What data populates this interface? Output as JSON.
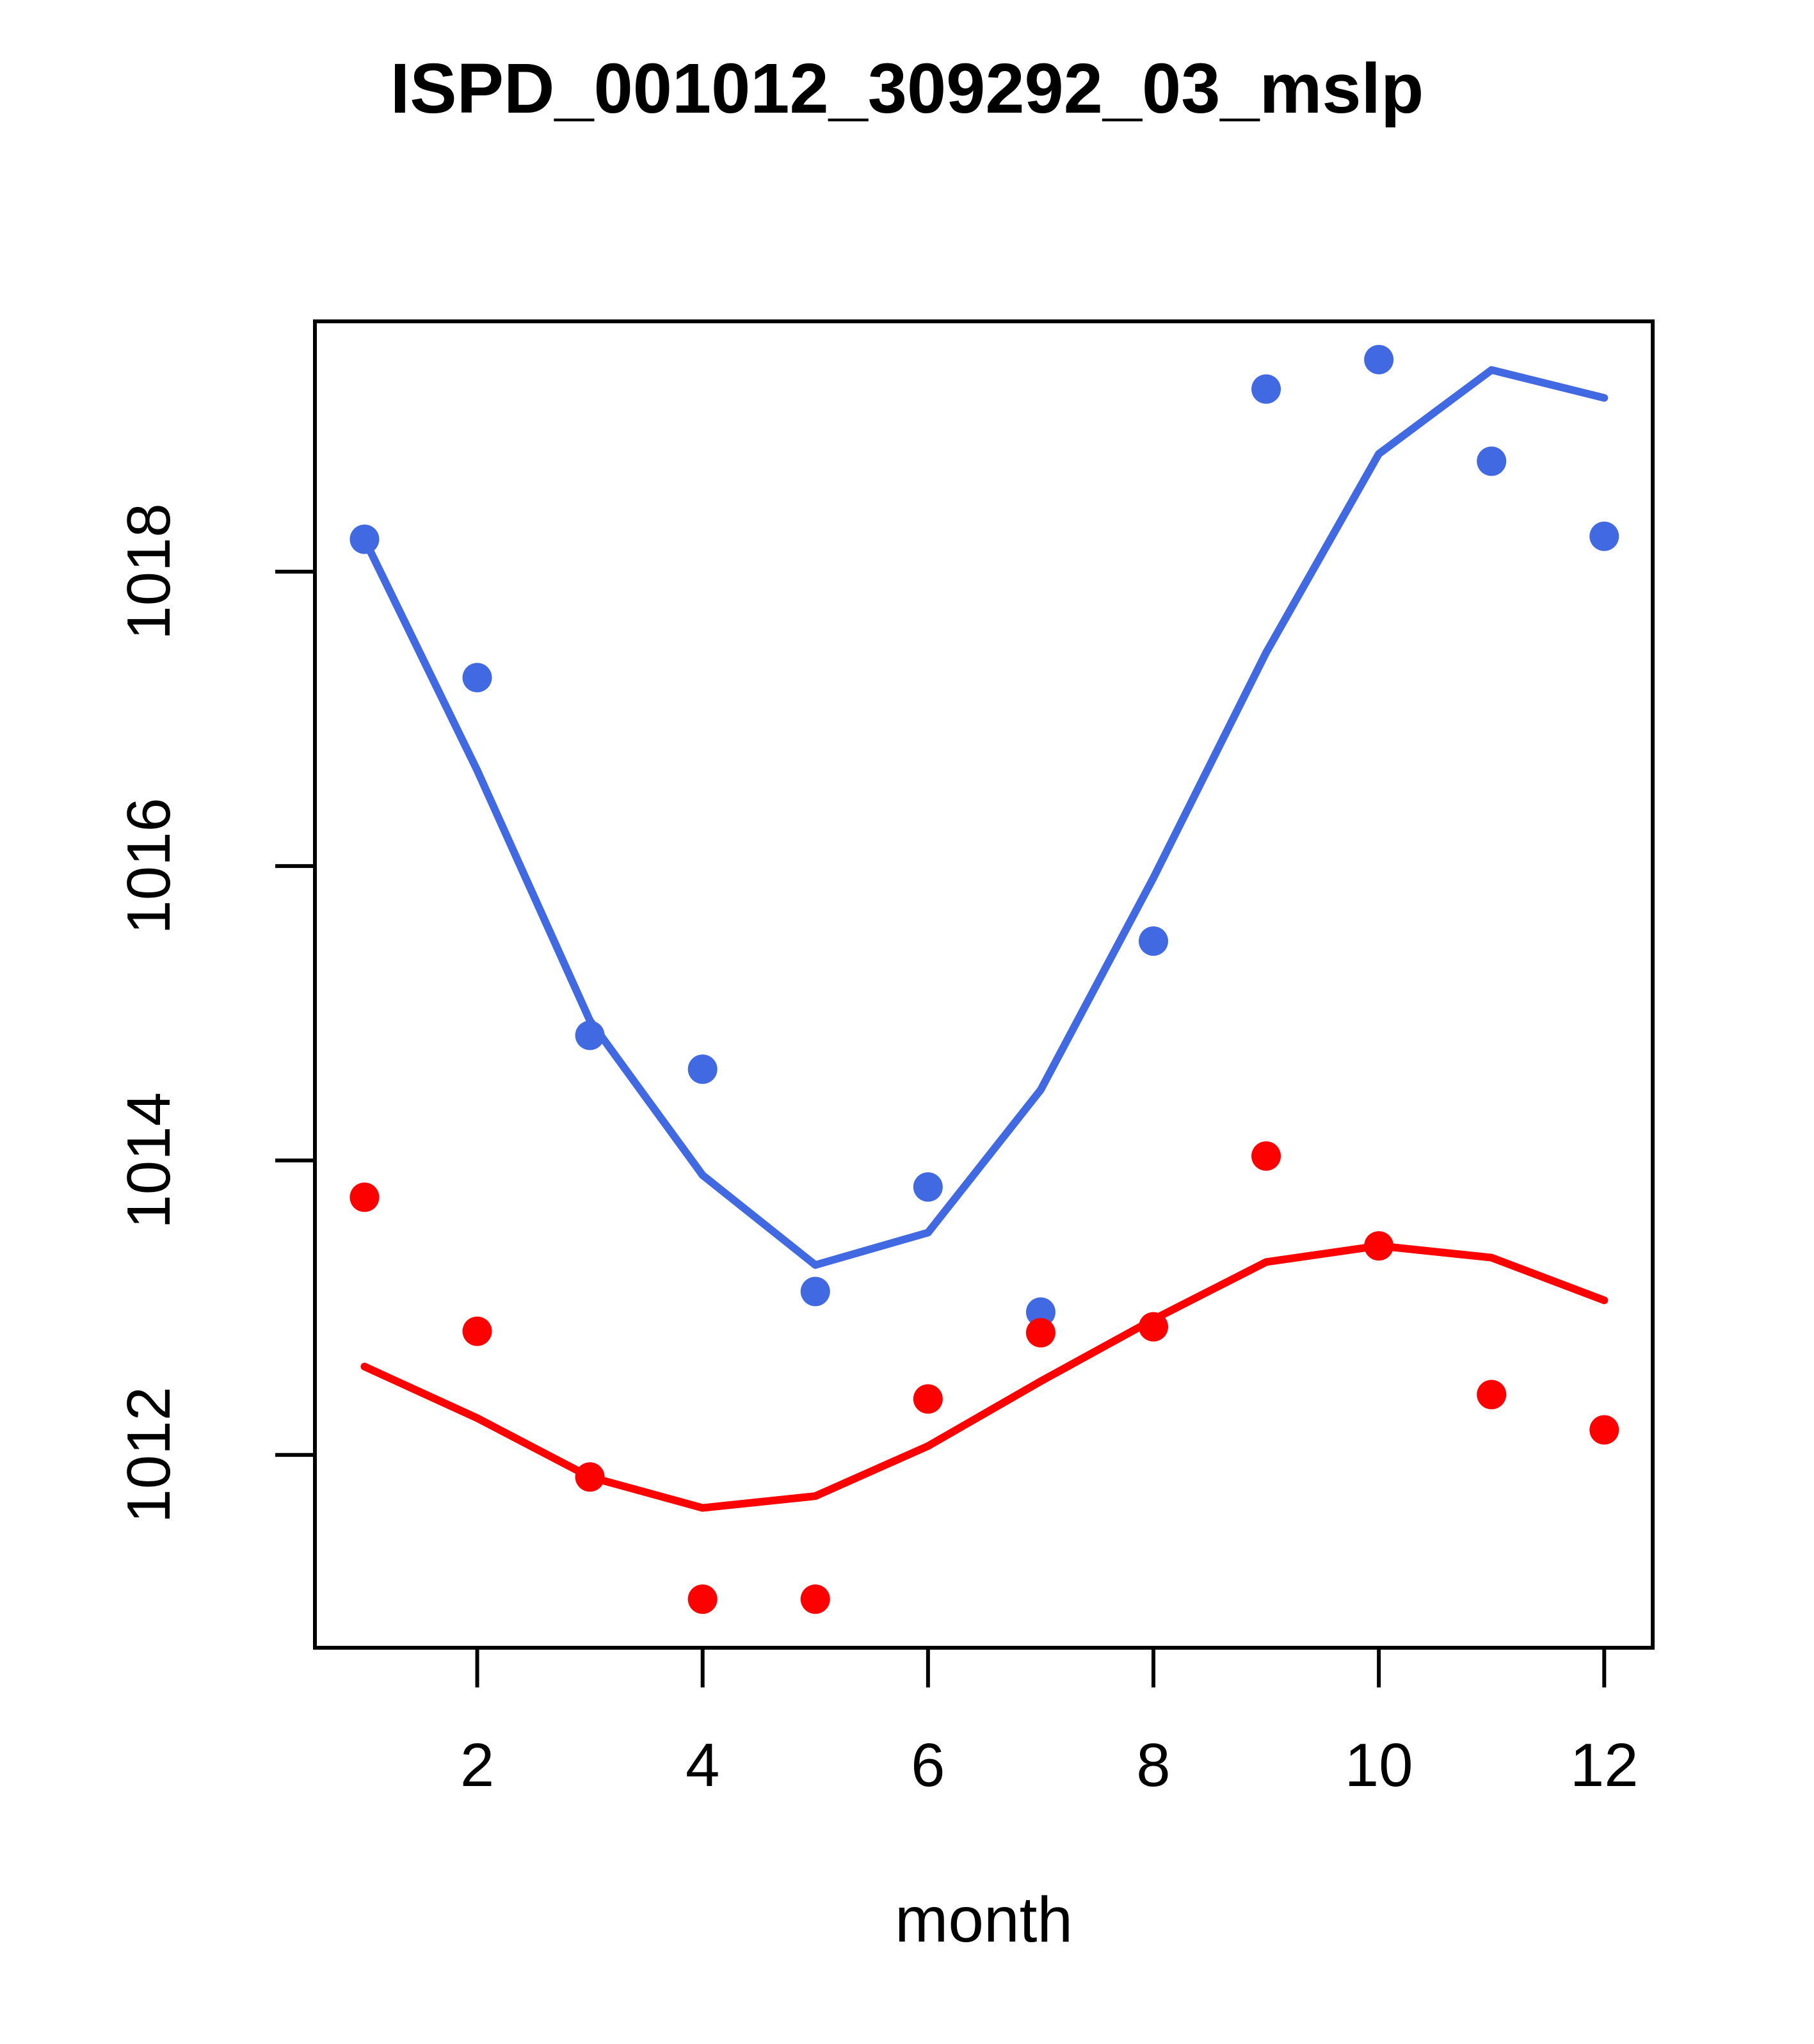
{
  "chart_data": {
    "type": "scatter",
    "title": "ISPD_001012_309292_03_mslp",
    "xlabel": "month",
    "ylabel": "",
    "legend": "none",
    "grid": false,
    "x_ticks": [
      2,
      4,
      6,
      8,
      10,
      12
    ],
    "y_ticks": [
      1012,
      1014,
      1016,
      1018
    ],
    "xlim": [
      0.56,
      12.43
    ],
    "ylim": [
      1010.69,
      1019.7
    ],
    "months": [
      1,
      2,
      3,
      4,
      5,
      6,
      7,
      8,
      9,
      10,
      11,
      12
    ],
    "series": [
      {
        "name": "series-1-points",
        "type": "scatter",
        "color": "#4169E1",
        "values": [
          1018.22,
          1017.28,
          1014.85,
          1014.62,
          1013.11,
          1013.82,
          1012.97,
          1015.49,
          1019.24,
          1019.44,
          1018.75,
          1018.24
        ]
      },
      {
        "name": "series-1-smooth",
        "type": "line",
        "color": "#4169E1",
        "values": [
          1018.22,
          1016.65,
          1014.95,
          1013.9,
          1013.29,
          1013.51,
          1014.48,
          1015.92,
          1017.45,
          1018.8,
          1019.37,
          1019.18
        ]
      },
      {
        "name": "series-2-points",
        "type": "scatter",
        "color": "#FF0000",
        "values": [
          1013.75,
          1012.84,
          1011.85,
          1011.02,
          1011.02,
          1012.38,
          1012.83,
          1012.87,
          1014.03,
          1013.42,
          1012.41,
          1012.17
        ]
      },
      {
        "name": "series-2-smooth",
        "type": "line",
        "color": "#FF0000",
        "values": [
          1012.6,
          1012.25,
          1011.85,
          1011.64,
          1011.72,
          1012.06,
          1012.5,
          1012.92,
          1013.31,
          1013.42,
          1013.34,
          1013.05
        ]
      }
    ]
  }
}
